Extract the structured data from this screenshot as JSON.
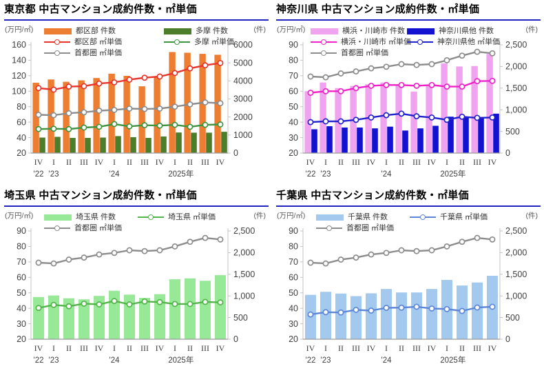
{
  "page": {
    "background": "#FFFFFF",
    "title_underline_color": "#2222C2"
  },
  "x_axis": {
    "quarters": [
      "IV",
      "I",
      "II",
      "III",
      "IV",
      "I",
      "II",
      "III",
      "IV",
      "I",
      "II",
      "III",
      "IV"
    ],
    "years": [
      {
        "label": "'22",
        "at": 0
      },
      {
        "label": "'23",
        "at": 1
      },
      {
        "label": "'24",
        "at": 5
      },
      {
        "label": "2025年",
        "at": 9.4
      }
    ]
  },
  "chart_data": [
    {
      "type": "bar+line",
      "title": "東京都 中古マンション成約件数・㎡単価",
      "unit_left": "(万円/㎡)",
      "unit_right": "(件)",
      "left_axis": {
        "min": 20,
        "max": 160,
        "step": 20,
        "label": "万円/㎡"
      },
      "right_axis": {
        "min": 0,
        "max": 6000,
        "step": 1000,
        "comma": false,
        "label": "件"
      },
      "bars": [
        {
          "name": "都区部 件数",
          "color": "#ED7D31",
          "values": [
            3900,
            4080,
            3950,
            4030,
            4160,
            4400,
            4280,
            3700,
            4260,
            5600,
            5560,
            5500,
            5450
          ]
        },
        {
          "name": "多摩 件数",
          "color": "#4B7D2A",
          "values": [
            860,
            900,
            840,
            840,
            860,
            940,
            880,
            840,
            920,
            1140,
            1130,
            1130,
            1180
          ]
        }
      ],
      "lines": [
        {
          "name": "首都圏 ㎡単価",
          "color": "#8C8C8C",
          "values": [
            69.5,
            69,
            71.5,
            72.8,
            74.8,
            75.8,
            77.5,
            77,
            77.5,
            80,
            83,
            85.5,
            84.5
          ]
        },
        {
          "name": "多摩 ㎡単価",
          "color": "#3F943F",
          "values": [
            51,
            51.5,
            51,
            53,
            54,
            57.5,
            54.5,
            56,
            55.5,
            56.5,
            54,
            56.5,
            57
          ]
        },
        {
          "name": "都区部 ㎡単価",
          "color": "#E8352B",
          "values": [
            104,
            102,
            106,
            106.5,
            110,
            111.5,
            115,
            117.5,
            119,
            123.5,
            129.5,
            133.5,
            136.5
          ]
        }
      ],
      "legend_cols": [
        64,
        238
      ],
      "legend": [
        {
          "row": 0,
          "col": 0,
          "type": "bar",
          "label": "都区部 件数",
          "color": "#ED7D31"
        },
        {
          "row": 0,
          "col": 1,
          "type": "bar",
          "label": "多摩 件数",
          "color": "#4B7D2A"
        },
        {
          "row": 1,
          "col": 0,
          "type": "line",
          "label": "都区部 ㎡単価",
          "color": "#E8352B"
        },
        {
          "row": 1,
          "col": 1,
          "type": "line",
          "label": "多摩 ㎡単価",
          "color": "#3F943F"
        },
        {
          "row": 2,
          "col": 0,
          "type": "line",
          "label": "首都圏 ㎡単価",
          "color": "#8C8C8C"
        }
      ]
    },
    {
      "type": "bar+line",
      "title": "神奈川県 中古マンション成約件数・㎡単価",
      "unit_left": "(万円/㎡)",
      "unit_right": "(件)",
      "left_axis": {
        "min": 20,
        "max": 90,
        "step": 10,
        "label": "万円/㎡"
      },
      "right_axis": {
        "min": 0,
        "max": 2500,
        "step": 500,
        "comma": true,
        "label": "件"
      },
      "bars": [
        {
          "name": "横浜・川崎市 件数",
          "color": "#F0A3EE",
          "values": [
            1430,
            1630,
            1500,
            1550,
            1590,
            1630,
            1570,
            1420,
            1550,
            2070,
            2000,
            2010,
            2290
          ]
        },
        {
          "name": "神奈川県他 件数",
          "color": "#1212D0",
          "values": [
            550,
            620,
            590,
            590,
            570,
            610,
            520,
            570,
            630,
            840,
            840,
            830,
            910
          ]
        }
      ],
      "lines": [
        {
          "name": "首都圏 ㎡単価",
          "color": "#8C8C8C",
          "values": [
            69.5,
            69,
            71.5,
            72.8,
            74.8,
            75.8,
            77.5,
            77,
            77.5,
            80,
            83,
            85.5,
            84.5
          ]
        },
        {
          "name": "横浜・川崎市 ㎡単価",
          "color": "#EE22C8",
          "values": [
            59,
            60,
            60,
            62,
            63.5,
            64,
            64,
            63.5,
            64,
            63,
            63,
            66.5,
            66.7
          ]
        },
        {
          "name": "神奈川県他 ㎡単価",
          "color": "#2222CC",
          "values": [
            40,
            40.5,
            40.5,
            41.5,
            43,
            44.5,
            45.5,
            43.8,
            43,
            41.5,
            43.5,
            42.8,
            43
          ]
        }
      ],
      "legend_cols": [
        56,
        196
      ],
      "legend": [
        {
          "row": 0,
          "col": 0,
          "type": "bar",
          "label": "横浜・川崎市 件数",
          "color": "#F0A3EE"
        },
        {
          "row": 0,
          "col": 1,
          "type": "bar",
          "label": "神奈川県他 件数",
          "color": "#1212D0"
        },
        {
          "row": 1,
          "col": 0,
          "type": "line",
          "label": "横浜・川崎市 ㎡単価",
          "color": "#EE22C8"
        },
        {
          "row": 1,
          "col": 1,
          "type": "line",
          "label": "神奈川県他 ㎡単価",
          "color": "#2222CC"
        },
        {
          "row": 2,
          "col": 0,
          "type": "line",
          "label": "首都圏 ㎡単価",
          "color": "#8C8C8C"
        }
      ]
    },
    {
      "type": "bar+line",
      "title": "埼玉県 中古マンション成約件数・㎡単価",
      "unit_left": "(万円/㎡)",
      "unit_right": "(件)",
      "left_axis": {
        "min": 20,
        "max": 90,
        "step": 10,
        "label": "万円/㎡"
      },
      "right_axis": {
        "min": 0,
        "max": 2500,
        "step": 500,
        "comma": true,
        "label": "件"
      },
      "bars": [
        {
          "name": "埼玉県 件数",
          "color": "#97E897",
          "values": [
            975,
            1010,
            945,
            920,
            1000,
            1120,
            1030,
            955,
            1040,
            1385,
            1405,
            1350,
            1480
          ]
        }
      ],
      "lines": [
        {
          "name": "首都圏 ㎡単価",
          "color": "#8C8C8C",
          "values": [
            69.5,
            69,
            71.5,
            72.8,
            74.8,
            75.8,
            77.5,
            77,
            77.5,
            80,
            83,
            85.5,
            84.5
          ]
        },
        {
          "name": "埼玉県 ㎡単価",
          "color": "#52B54A",
          "values": [
            40.2,
            42.2,
            41.3,
            43,
            42.5,
            44.7,
            42.5,
            44.4,
            44,
            42.8,
            42.8,
            44.1,
            43.8
          ]
        }
      ],
      "legend_cols": [
        64,
        200
      ],
      "legend": [
        {
          "row": 0,
          "col": 0,
          "type": "bar",
          "label": "埼玉県 件数",
          "color": "#97E897"
        },
        {
          "row": 0,
          "col": 1,
          "type": "line",
          "label": "埼玉県 ㎡単価",
          "color": "#52B54A"
        },
        {
          "row": 1,
          "col": 0,
          "type": "line",
          "label": "首都圏 ㎡単価",
          "color": "#8C8C8C"
        }
      ]
    },
    {
      "type": "bar+line",
      "title": "千葉県 中古マンション成約件数・㎡単価",
      "unit_left": "(万円/㎡)",
      "unit_right": "(件)",
      "left_axis": {
        "min": 20,
        "max": 90,
        "step": 10,
        "label": "万円/㎡"
      },
      "right_axis": {
        "min": 0,
        "max": 2500,
        "step": 500,
        "comma": true,
        "label": "件"
      },
      "bars": [
        {
          "name": "千葉県 件数",
          "color": "#A3C9EE",
          "values": [
            1025,
            1095,
            1055,
            995,
            1060,
            1160,
            1080,
            1080,
            1160,
            1370,
            1240,
            1310,
            1465
          ]
        }
      ],
      "lines": [
        {
          "name": "首都圏 ㎡単価",
          "color": "#8C8C8C",
          "values": [
            69.5,
            69,
            71.5,
            72.8,
            74.8,
            75.8,
            77.5,
            77,
            77.5,
            80,
            83,
            85.5,
            84.5
          ]
        },
        {
          "name": "千葉県 ㎡単価",
          "color": "#5C86D8",
          "values": [
            36,
            37.5,
            37.3,
            39,
            38.5,
            40.3,
            40.4,
            41,
            39.9,
            39.5,
            38.3,
            40.5,
            41
          ]
        }
      ],
      "legend_cols": [
        64,
        200
      ],
      "legend": [
        {
          "row": 0,
          "col": 0,
          "type": "bar",
          "label": "千葉県 件数",
          "color": "#A3C9EE"
        },
        {
          "row": 0,
          "col": 1,
          "type": "line",
          "label": "千葉県 ㎡単価",
          "color": "#5C86D8"
        },
        {
          "row": 1,
          "col": 0,
          "type": "line",
          "label": "首都圏 ㎡単価",
          "color": "#8C8C8C"
        }
      ]
    }
  ]
}
